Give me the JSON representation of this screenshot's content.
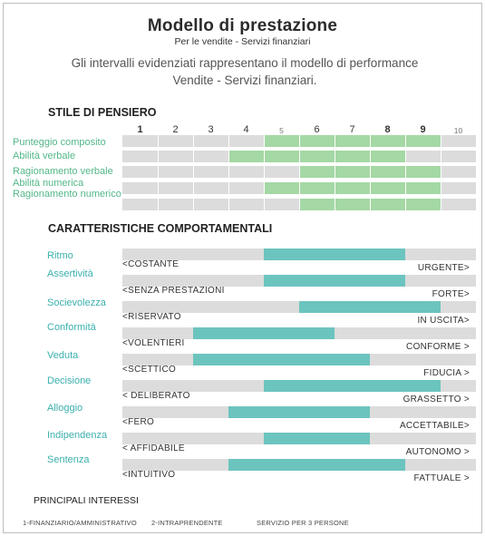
{
  "header": {
    "title": "Modello di prestazione",
    "subtitle": "Per le vendite - Servizi finanziari",
    "description": "Gli intervalli evidenziati rappresentano il modello di performance Vendite - Servizi finanziari."
  },
  "thinking": {
    "heading": "STILE DI PENSIERO",
    "scale": [
      "1",
      "2",
      "3",
      "4",
      "5",
      "6",
      "7",
      "8",
      "9",
      "10"
    ],
    "rows": [
      {
        "label": "Punteggio composito",
        "from": 5,
        "to": 9
      },
      {
        "label": "Abilità verbale",
        "from": 4,
        "to": 8
      },
      {
        "label": "Ragionamento verbale",
        "from": 6,
        "to": 9
      },
      {
        "label": "Abilità numerica",
        "from": 5,
        "to": 9
      },
      {
        "label": "Ragionamento numerico",
        "from": 6,
        "to": 9
      }
    ]
  },
  "behavior": {
    "heading": "CARATTERISTICHE COMPORTAMENTALI",
    "rows": [
      {
        "label": "Ritmo",
        "left": "<COSTANTE",
        "right": "URGENTE>",
        "from": 5,
        "to": 8
      },
      {
        "label": "Assertività",
        "left": "<SENZA PRESTAZIONI",
        "right": "FORTE>",
        "from": 5,
        "to": 8
      },
      {
        "label": "Socievolezza",
        "left": "<RISERVATO",
        "right": "IN USCITA>",
        "from": 6,
        "to": 9
      },
      {
        "label": "Conformità",
        "left": "<VOLENTIERI",
        "right": "CONFORME >",
        "from": 3,
        "to": 6
      },
      {
        "label": "Veduta",
        "left": "<SCETTICO",
        "right": "FIDUCIA >",
        "from": 3,
        "to": 7
      },
      {
        "label": "Decisione",
        "left": "< DELIBERATO",
        "right": "GRASSETTO >",
        "from": 5,
        "to": 9
      },
      {
        "label": "Alloggio",
        "left": "<FERO",
        "right": "ACCETTABILE>",
        "from": 4,
        "to": 7
      },
      {
        "label": "Indipendenza",
        "left": "< AFFIDABILE",
        "right": "AUTONOMO >",
        "from": 5,
        "to": 7
      },
      {
        "label": "Sentenza",
        "left": "<INTUITIVO",
        "right": "FATTUALE >",
        "from": 4,
        "to": 8
      }
    ]
  },
  "interests": {
    "heading": "PRINCIPALI INTERESSI",
    "items": [
      "1-FINANZIARIO/AMMINISTRATIVO",
      "2-INTRAPRENDENTE",
      "SERVIZIO PER 3 PERSONE"
    ]
  },
  "colors": {
    "thinking_fill": "#a4d8a4",
    "behavior_fill": "#6cc4be",
    "track": "#dcdcdc",
    "thinking_label": "#52b788",
    "behavior_label": "#3ab0ad"
  }
}
